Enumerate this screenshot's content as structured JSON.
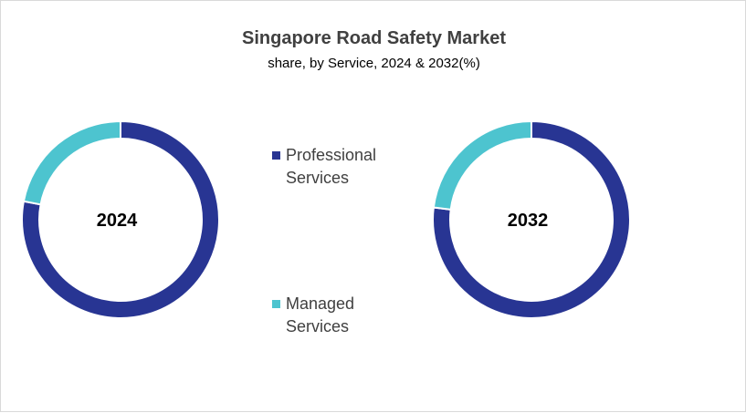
{
  "chart_data": {
    "type": "pie",
    "title": "Singapore Road Safety Market",
    "subtitle": "share, by Service, 2024 & 2032(%)",
    "series": [
      {
        "name": "Professional Services",
        "color": "#283593"
      },
      {
        "name": "Managed Services",
        "color": "#4dc4cf"
      }
    ],
    "charts": [
      {
        "year": "2024",
        "values": [
          78,
          22
        ]
      },
      {
        "year": "2032",
        "values": [
          77,
          23
        ]
      }
    ],
    "legend_position": "center"
  }
}
